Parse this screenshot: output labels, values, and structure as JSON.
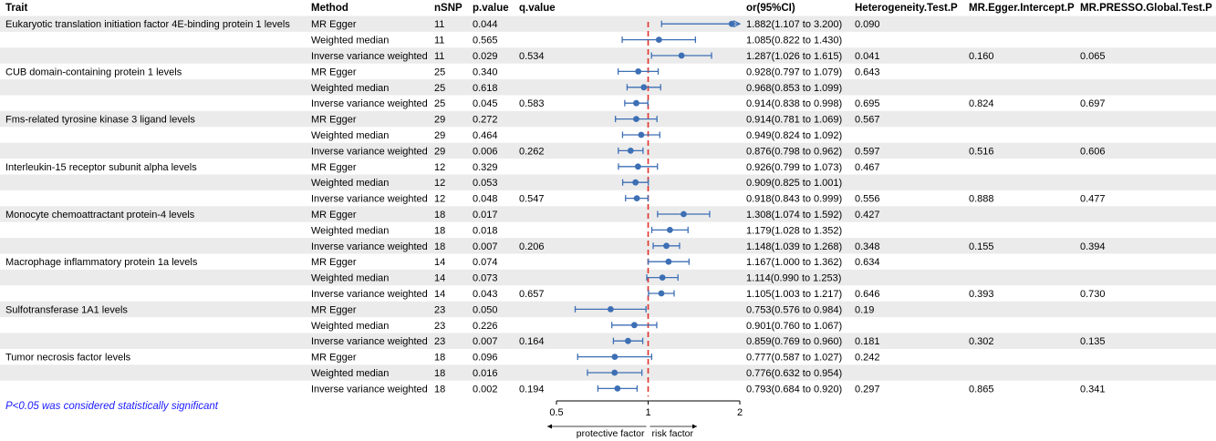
{
  "colors": {
    "stripe": "#ebebeb",
    "point": "#3d6fb5",
    "ci_line": "#3d6fb5",
    "reference_line": "#e0312b",
    "axis": "#000000",
    "footnote": "#1a1aff"
  },
  "headers": {
    "trait": "Trait",
    "method": "Method",
    "nsnp": "nSNP",
    "pvalue": "p.value",
    "qvalue": "q.value",
    "or_ci": "or(95%CI)",
    "heterogeneity": "Heterogeneity.Test.P",
    "egger_intercept": "MR.Egger.Intercept.P",
    "presso": "MR.PRESSO.Global.Test.P"
  },
  "footnote": "P<0.05 was considered statistically significant",
  "chart_data": {
    "type": "forest",
    "xlim": [
      0.5,
      2
    ],
    "reference_value": 1,
    "ticks": [
      0.5,
      1,
      2
    ],
    "tick_labels": [
      "0.5",
      "1",
      "2"
    ],
    "left_caption": "protective factor",
    "right_caption": "risk factor",
    "rows": [
      {
        "trait": "Eukaryotic translation initiation factor 4E-binding protein 1 levels",
        "method": "MR Egger",
        "nsnp": "11",
        "pvalue": "0.044",
        "qvalue": "",
        "or": 1.882,
        "lo": 1.107,
        "hi": 3.2,
        "or_ci": "1.882(1.107 to 3.200)",
        "het": "0.090",
        "egger": "",
        "presso": ""
      },
      {
        "trait": "",
        "method": "Weighted median",
        "nsnp": "11",
        "pvalue": "0.565",
        "qvalue": "",
        "or": 1.085,
        "lo": 0.822,
        "hi": 1.43,
        "or_ci": "1.085(0.822 to 1.430)",
        "het": "",
        "egger": "",
        "presso": ""
      },
      {
        "trait": "",
        "method": "Inverse variance weighted",
        "nsnp": "11",
        "pvalue": "0.029",
        "qvalue": "0.534",
        "or": 1.287,
        "lo": 1.026,
        "hi": 1.615,
        "or_ci": "1.287(1.026 to 1.615)",
        "het": "0.041",
        "egger": "0.160",
        "presso": "0.065"
      },
      {
        "trait": "CUB domain-containing protein 1 levels",
        "method": "MR Egger",
        "nsnp": "25",
        "pvalue": "0.340",
        "qvalue": "",
        "or": 0.928,
        "lo": 0.797,
        "hi": 1.079,
        "or_ci": "0.928(0.797 to 1.079)",
        "het": "0.643",
        "egger": "",
        "presso": ""
      },
      {
        "trait": "",
        "method": "Weighted median",
        "nsnp": "25",
        "pvalue": "0.618",
        "qvalue": "",
        "or": 0.968,
        "lo": 0.853,
        "hi": 1.099,
        "or_ci": "0.968(0.853 to 1.099)",
        "het": "",
        "egger": "",
        "presso": ""
      },
      {
        "trait": "",
        "method": "Inverse variance weighted",
        "nsnp": "25",
        "pvalue": "0.045",
        "qvalue": "0.583",
        "or": 0.914,
        "lo": 0.838,
        "hi": 0.998,
        "or_ci": "0.914(0.838 to 0.998)",
        "het": "0.695",
        "egger": "0.824",
        "presso": "0.697"
      },
      {
        "trait": "Fms-related tyrosine kinase 3 ligand levels",
        "method": "MR Egger",
        "nsnp": "29",
        "pvalue": "0.272",
        "qvalue": "",
        "or": 0.914,
        "lo": 0.781,
        "hi": 1.069,
        "or_ci": "0.914(0.781 to 1.069)",
        "het": "0.567",
        "egger": "",
        "presso": ""
      },
      {
        "trait": "",
        "method": "Weighted median",
        "nsnp": "29",
        "pvalue": "0.464",
        "qvalue": "",
        "or": 0.949,
        "lo": 0.824,
        "hi": 1.092,
        "or_ci": "0.949(0.824 to 1.092)",
        "het": "",
        "egger": "",
        "presso": ""
      },
      {
        "trait": "",
        "method": "Inverse variance weighted",
        "nsnp": "29",
        "pvalue": "0.006",
        "qvalue": "0.262",
        "or": 0.876,
        "lo": 0.798,
        "hi": 0.962,
        "or_ci": "0.876(0.798 to 0.962)",
        "het": "0.597",
        "egger": "0.516",
        "presso": "0.606"
      },
      {
        "trait": "Interleukin-15 receptor subunit alpha levels",
        "method": "MR Egger",
        "nsnp": "12",
        "pvalue": "0.329",
        "qvalue": "",
        "or": 0.926,
        "lo": 0.799,
        "hi": 1.073,
        "or_ci": "0.926(0.799 to 1.073)",
        "het": "0.467",
        "egger": "",
        "presso": ""
      },
      {
        "trait": "",
        "method": "Weighted median",
        "nsnp": "12",
        "pvalue": "0.053",
        "qvalue": "",
        "or": 0.909,
        "lo": 0.825,
        "hi": 1.001,
        "or_ci": "0.909(0.825 to 1.001)",
        "het": "",
        "egger": "",
        "presso": ""
      },
      {
        "trait": "",
        "method": "Inverse variance weighted",
        "nsnp": "12",
        "pvalue": "0.048",
        "qvalue": "0.547",
        "or": 0.918,
        "lo": 0.843,
        "hi": 0.999,
        "or_ci": "0.918(0.843 to 0.999)",
        "het": "0.556",
        "egger": "0.888",
        "presso": "0.477"
      },
      {
        "trait": "Monocyte chemoattractant protein-4 levels",
        "method": "MR Egger",
        "nsnp": "18",
        "pvalue": "0.017",
        "qvalue": "",
        "or": 1.308,
        "lo": 1.074,
        "hi": 1.592,
        "or_ci": "1.308(1.074 to 1.592)",
        "het": "0.427",
        "egger": "",
        "presso": ""
      },
      {
        "trait": "",
        "method": "Weighted median",
        "nsnp": "18",
        "pvalue": "0.018",
        "qvalue": "",
        "or": 1.179,
        "lo": 1.028,
        "hi": 1.352,
        "or_ci": "1.179(1.028 to 1.352)",
        "het": "",
        "egger": "",
        "presso": ""
      },
      {
        "trait": "",
        "method": "Inverse variance weighted",
        "nsnp": "18",
        "pvalue": "0.007",
        "qvalue": "0.206",
        "or": 1.148,
        "lo": 1.039,
        "hi": 1.268,
        "or_ci": "1.148(1.039 to 1.268)",
        "het": "0.348",
        "egger": "0.155",
        "presso": "0.394"
      },
      {
        "trait": "Macrophage inflammatory protein 1a levels",
        "method": "MR Egger",
        "nsnp": "14",
        "pvalue": "0.074",
        "qvalue": "",
        "or": 1.167,
        "lo": 1.0,
        "hi": 1.362,
        "or_ci": "1.167(1.000 to 1.362)",
        "het": "0.634",
        "egger": "",
        "presso": ""
      },
      {
        "trait": "",
        "method": "Weighted median",
        "nsnp": "14",
        "pvalue": "0.073",
        "qvalue": "",
        "or": 1.114,
        "lo": 0.99,
        "hi": 1.253,
        "or_ci": "1.114(0.990 to 1.253)",
        "het": "",
        "egger": "",
        "presso": ""
      },
      {
        "trait": "",
        "method": "Inverse variance weighted",
        "nsnp": "14",
        "pvalue": "0.043",
        "qvalue": "0.657",
        "or": 1.105,
        "lo": 1.003,
        "hi": 1.217,
        "or_ci": "1.105(1.003 to 1.217)",
        "het": "0.646",
        "egger": "0.393",
        "presso": "0.730"
      },
      {
        "trait": "Sulfotransferase 1A1 levels",
        "method": "MR Egger",
        "nsnp": "23",
        "pvalue": "0.050",
        "qvalue": "",
        "or": 0.753,
        "lo": 0.576,
        "hi": 0.984,
        "or_ci": "0.753(0.576 to 0.984)",
        "het": "0.19",
        "egger": "",
        "presso": ""
      },
      {
        "trait": "",
        "method": "Weighted median",
        "nsnp": "23",
        "pvalue": "0.226",
        "qvalue": "",
        "or": 0.901,
        "lo": 0.76,
        "hi": 1.067,
        "or_ci": "0.901(0.760 to 1.067)",
        "het": "",
        "egger": "",
        "presso": ""
      },
      {
        "trait": "",
        "method": "Inverse variance weighted",
        "nsnp": "23",
        "pvalue": "0.007",
        "qvalue": "0.164",
        "or": 0.859,
        "lo": 0.769,
        "hi": 0.96,
        "or_ci": "0.859(0.769 to 0.960)",
        "het": "0.181",
        "egger": "0.302",
        "presso": "0.135"
      },
      {
        "trait": "Tumor necrosis factor levels",
        "method": "MR Egger",
        "nsnp": "18",
        "pvalue": "0.096",
        "qvalue": "",
        "or": 0.777,
        "lo": 0.587,
        "hi": 1.027,
        "or_ci": "0.777(0.587 to 1.027)",
        "het": "0.242",
        "egger": "",
        "presso": ""
      },
      {
        "trait": "",
        "method": "Weighted median",
        "nsnp": "18",
        "pvalue": "0.016",
        "qvalue": "",
        "or": 0.776,
        "lo": 0.632,
        "hi": 0.954,
        "or_ci": "0.776(0.632 to 0.954)",
        "het": "",
        "egger": "",
        "presso": ""
      },
      {
        "trait": "",
        "method": "Inverse variance weighted",
        "nsnp": "18",
        "pvalue": "0.002",
        "qvalue": "0.194",
        "or": 0.793,
        "lo": 0.684,
        "hi": 0.92,
        "or_ci": "0.793(0.684 to 0.920)",
        "het": "0.297",
        "egger": "0.865",
        "presso": "0.341"
      }
    ]
  }
}
